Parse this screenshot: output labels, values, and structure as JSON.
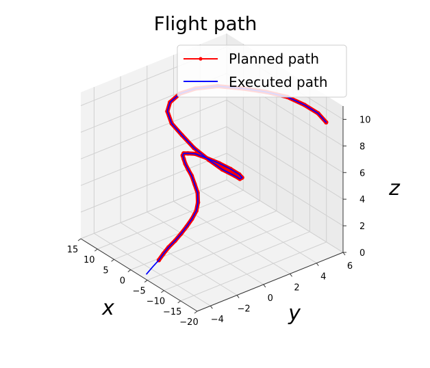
{
  "chart_data": {
    "type": "line",
    "projection": "3d",
    "title": "Flight path",
    "xlabel": "x",
    "ylabel": "y",
    "zlabel": "z",
    "xlim": [
      -20,
      15
    ],
    "ylim": [
      -5,
      6
    ],
    "zlim": [
      0,
      11
    ],
    "x_ticks": [
      -20,
      -15,
      -10,
      -5,
      0,
      5,
      10,
      15
    ],
    "y_ticks": [
      -4,
      -2,
      0,
      2,
      4,
      6
    ],
    "z_ticks": [
      0,
      2,
      4,
      6,
      8,
      10
    ],
    "grid": true,
    "legend_position": "top-right",
    "series": [
      {
        "name": "Planned path",
        "color": "#ff0000",
        "marker": "dot",
        "x": [
          -0.5,
          -0.7,
          -1.0,
          -1.4,
          -1.6,
          -1.7,
          -1.7,
          -1.4,
          -0.7,
          0.6,
          1.9,
          3.2,
          4.2,
          5.1,
          5.6,
          5.9,
          6.0,
          5.5,
          4.5,
          2.5,
          -0.3,
          -3.3,
          -5.9,
          -7.6,
          -8.1,
          -7.4,
          -5.2,
          -2.0,
          1.7,
          5.3,
          8.4,
          10.5,
          11.3,
          10.7,
          8.8,
          5.3,
          0.4,
          -4.1,
          -8.4,
          -12.4,
          -15.7,
          -18.1
        ],
        "y": [
          -3.0,
          -2.7,
          -2.4,
          -2.0,
          -1.6,
          -1.2,
          -0.8,
          -0.4,
          -0.1,
          0.2,
          0.3,
          0.4,
          0.4,
          0.4,
          0.4,
          0.4,
          0.5,
          0.7,
          1.0,
          1.3,
          1.6,
          1.7,
          1.7,
          1.5,
          1.2,
          1.0,
          0.6,
          0.4,
          0.2,
          0.2,
          0.2,
          0.4,
          0.8,
          1.4,
          2.1,
          2.9,
          3.6,
          4.2,
          4.7,
          5.0,
          5.2,
          5.2
        ],
        "z": [
          0.0,
          0.4,
          0.8,
          1.2,
          1.6,
          2.0,
          2.4,
          2.8,
          3.2,
          3.6,
          4.0,
          4.4,
          4.7,
          5.0,
          5.3,
          5.5,
          5.6,
          5.6,
          5.6,
          5.5,
          5.4,
          5.4,
          5.4,
          5.5,
          5.6,
          5.8,
          6.1,
          6.4,
          6.8,
          7.2,
          7.6,
          8.1,
          8.5,
          9.0,
          9.4,
          9.8,
          10.1,
          10.3,
          10.4,
          10.3,
          10.1,
          9.8
        ]
      },
      {
        "name": "Executed path",
        "color": "#0000ff",
        "marker": "none",
        "x": [
          0.0,
          -0.2,
          -0.5,
          -0.7,
          -1.0,
          -1.4,
          -1.6,
          -1.7,
          -1.7,
          -1.4,
          -0.7,
          0.6,
          1.9,
          3.2,
          4.2,
          5.1,
          5.6,
          5.9,
          6.0,
          5.5,
          4.5,
          2.5,
          -0.3,
          -3.3,
          -5.9,
          -7.6,
          -8.1,
          -7.4,
          -5.2,
          -2.0,
          1.7,
          5.3,
          8.4,
          10.5,
          11.3,
          10.7,
          8.8,
          5.3,
          0.4,
          -4.1,
          -8.4,
          -12.4,
          -15.7,
          -18.1
        ],
        "y": [
          -3.8,
          -3.4,
          -3.0,
          -2.7,
          -2.4,
          -2.0,
          -1.6,
          -1.2,
          -0.8,
          -0.4,
          -0.1,
          0.2,
          0.3,
          0.4,
          0.4,
          0.4,
          0.4,
          0.4,
          0.5,
          0.7,
          1.0,
          1.3,
          1.6,
          1.7,
          1.7,
          1.5,
          1.2,
          1.0,
          0.6,
          0.4,
          0.2,
          0.2,
          0.2,
          0.4,
          0.8,
          1.4,
          2.1,
          2.9,
          3.6,
          4.2,
          4.7,
          5.0,
          5.2,
          5.2
        ],
        "z": [
          -0.8,
          -0.4,
          0.0,
          0.4,
          0.8,
          1.2,
          1.6,
          2.0,
          2.4,
          2.8,
          3.2,
          3.6,
          4.0,
          4.4,
          4.7,
          5.0,
          5.3,
          5.5,
          5.6,
          5.6,
          5.6,
          5.5,
          5.4,
          5.4,
          5.4,
          5.5,
          5.6,
          5.8,
          6.1,
          6.4,
          6.8,
          7.2,
          7.6,
          8.1,
          8.5,
          9.0,
          9.4,
          9.8,
          10.1,
          10.3,
          10.4,
          10.3,
          10.1,
          9.8
        ]
      }
    ]
  }
}
